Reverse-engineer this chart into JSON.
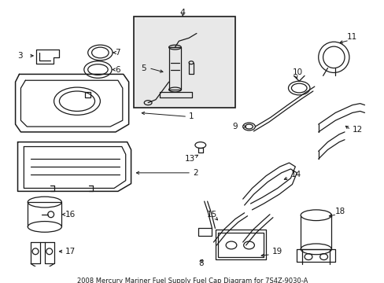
{
  "title": "2008 Mercury Mariner Fuel Supply Fuel Cap Diagram for 7S4Z-9030-A",
  "bg_color": "#ffffff",
  "line_color": "#1a1a1a",
  "gray_box": "#e8e8e8",
  "figsize": [
    4.89,
    3.6
  ],
  "dpi": 100
}
